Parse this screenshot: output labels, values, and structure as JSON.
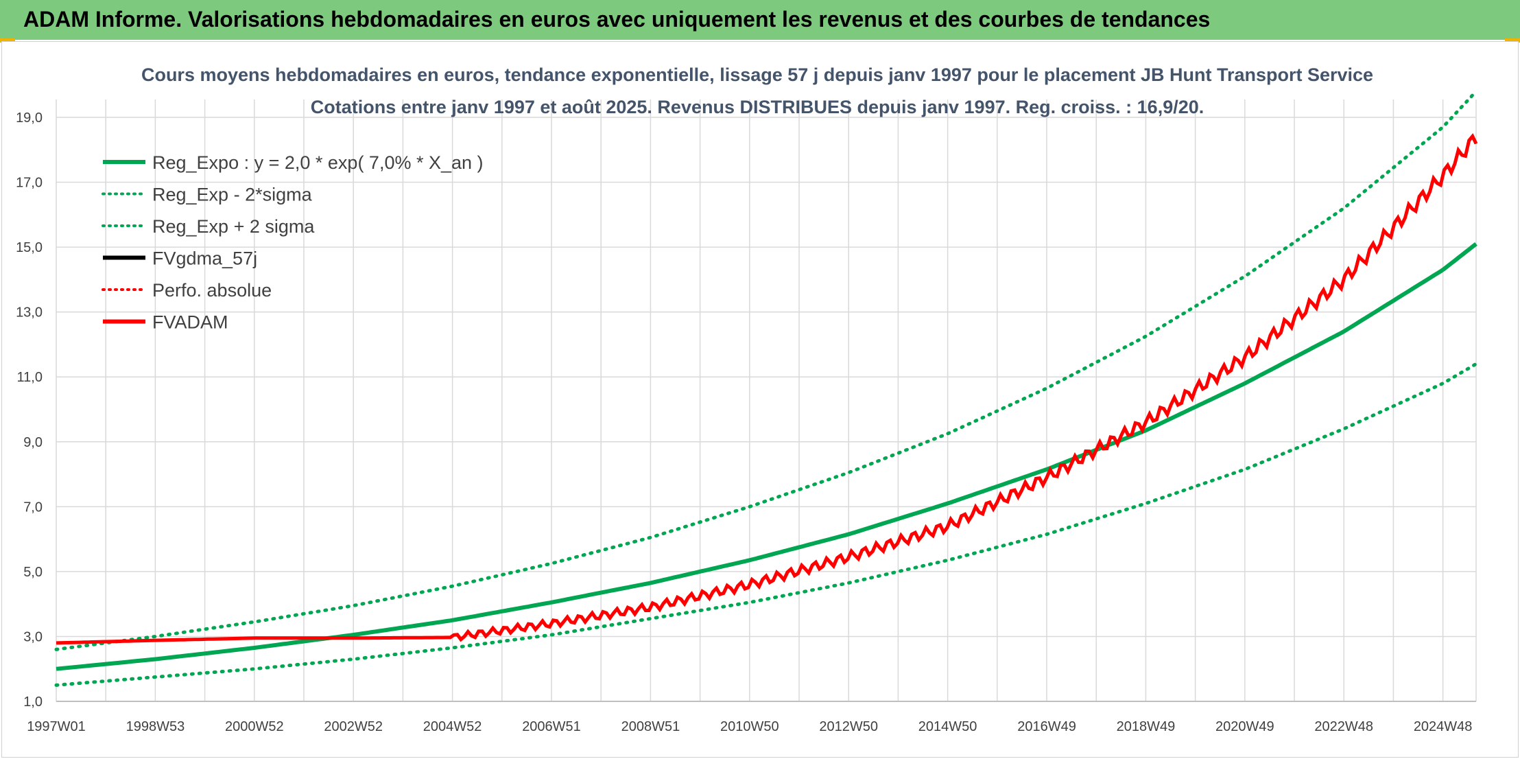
{
  "header": {
    "title": "ADAM Informe. Valorisations hebdomadaires en euros avec uniquement les revenus et des courbes de tendances"
  },
  "colors": {
    "banner": "#7dc97d",
    "reg": "#00a651",
    "gdma": "#000000",
    "adam": "#ff0000",
    "grid": "#d9d9d9"
  },
  "chart_data": {
    "type": "line",
    "title": "Cours moyens hebdomadaires en euros, tendance exponentielle, lissage 57 j depuis janv 1997 pour le placement JB Hunt Transport Service",
    "subtitle": "Cotations entre janv 1997 et août 2025. Revenus DISTRIBUES depuis janv 1997. Reg. croiss. : 16,9/20.",
    "x_ticks": [
      "1997W01",
      "1998W53",
      "2000W52",
      "2002W52",
      "2004W52",
      "2006W51",
      "2008W51",
      "2010W50",
      "2012W50",
      "2014W50",
      "2016W49",
      "2018W49",
      "2020W49",
      "2022W48",
      "2024W48"
    ],
    "x_range": [
      "1997W01",
      "2025W35"
    ],
    "y_ticks": [
      "1,0",
      "3,0",
      "5,0",
      "7,0",
      "9,0",
      "11,0",
      "13,0",
      "15,0",
      "17,0",
      "19,0"
    ],
    "ylim": [
      1,
      20
    ],
    "grid": true,
    "legend_position": "top-left",
    "legend": [
      {
        "label": "Reg_Expo : y = 2,0 * exp( 7,0% *  X_an )",
        "color": "#00a651",
        "style": "solid"
      },
      {
        "label": "Reg_Exp - 2*sigma",
        "color": "#00a651",
        "style": "dotted"
      },
      {
        "label": "Reg_Exp + 2 sigma",
        "color": "#00a651",
        "style": "dotted"
      },
      {
        "label": "FVgdma_57j",
        "color": "#000000",
        "style": "solid"
      },
      {
        "label": "Perfo. absolue",
        "color": "#ff0000",
        "style": "dotted"
      },
      {
        "label": "FVADAM",
        "color": "#ff0000",
        "style": "solid"
      }
    ],
    "series": [
      {
        "name": "Reg_Expo : y = 2,0 * exp( 7,0% *  X_an )",
        "x_years": [
          0,
          2,
          4,
          6,
          8,
          10,
          12,
          14,
          16,
          18,
          20,
          22,
          24,
          26,
          28,
          28.67
        ],
        "values": [
          2.0,
          2.3,
          2.65,
          3.05,
          3.5,
          4.05,
          4.65,
          5.35,
          6.15,
          7.1,
          8.15,
          9.35,
          10.8,
          12.4,
          14.3,
          15.1
        ]
      },
      {
        "name": "Reg_Exp - 2*sigma",
        "x_years": [
          0,
          2,
          4,
          6,
          8,
          10,
          12,
          14,
          16,
          18,
          20,
          22,
          24,
          26,
          28,
          28.67
        ],
        "values": [
          1.5,
          1.75,
          2.0,
          2.3,
          2.65,
          3.05,
          3.55,
          4.05,
          4.65,
          5.35,
          6.15,
          7.1,
          8.15,
          9.4,
          10.8,
          11.4
        ]
      },
      {
        "name": "Reg_Exp + 2 sigma",
        "x_years": [
          0,
          2,
          4,
          6,
          8,
          10,
          12,
          14,
          16,
          18,
          20,
          22,
          24,
          26,
          28,
          28.67
        ],
        "values": [
          2.6,
          3.0,
          3.45,
          3.95,
          4.55,
          5.25,
          6.05,
          7.0,
          8.05,
          9.25,
          10.65,
          12.25,
          14.1,
          16.2,
          18.7,
          19.8
        ]
      },
      {
        "name": "FVgdma_57j",
        "x_years": [
          0,
          2,
          4,
          6,
          8,
          10,
          12,
          14,
          16,
          18,
          20,
          22,
          24,
          26,
          28,
          28.67
        ],
        "values": [
          2.8,
          2.88,
          2.95,
          2.95,
          2.97,
          3.4,
          3.9,
          4.6,
          5.45,
          6.4,
          7.9,
          9.6,
          11.6,
          14.0,
          17.2,
          18.4
        ]
      },
      {
        "name": "Perfo. absolue",
        "x_years": [
          0,
          2,
          4,
          6,
          8,
          10,
          12,
          14,
          16,
          18,
          20,
          22,
          24,
          26,
          28,
          28.67
        ],
        "values": [
          2.8,
          2.88,
          2.95,
          2.95,
          2.97,
          3.4,
          3.9,
          4.6,
          5.45,
          6.4,
          7.9,
          9.6,
          11.6,
          14.0,
          17.2,
          18.4
        ]
      },
      {
        "name": "FVADAM",
        "x_years": [
          0,
          2,
          4,
          6,
          8,
          10,
          12,
          14,
          16,
          18,
          20,
          22,
          24,
          26,
          28,
          28.67
        ],
        "values": [
          2.8,
          2.88,
          2.95,
          2.95,
          2.97,
          3.4,
          3.9,
          4.6,
          5.45,
          6.4,
          7.9,
          9.6,
          11.6,
          14.0,
          17.2,
          18.4
        ]
      }
    ]
  }
}
